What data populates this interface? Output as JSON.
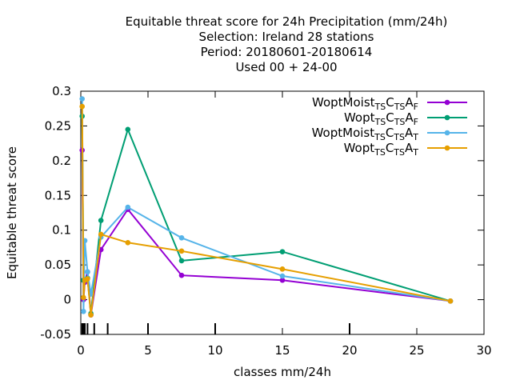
{
  "chart_data": {
    "type": "line",
    "title_lines": [
      "Equitable threat score  for 24h Precipitation (mm/24h)",
      "Selection: Ireland      28 stations",
      "Period: 20180601-20180614",
      "Used  00 + 24-00"
    ],
    "xlabel": "classes mm/24h",
    "ylabel": "Equitable threat score",
    "xlim": [
      0,
      30
    ],
    "ylim": [
      -0.05,
      0.3
    ],
    "xticks": [
      "0",
      "5",
      "10",
      "15",
      "20",
      "25",
      "30"
    ],
    "yticks": [
      "-0.05",
      "0",
      "0.05",
      "0.1",
      "0.15",
      "0.2",
      "0.25",
      "0.3"
    ],
    "class_marks": [
      0.1,
      0.2,
      0.3,
      0.5,
      1,
      2,
      5,
      10,
      20
    ],
    "grid": false,
    "legend_position": "top-right",
    "series": [
      {
        "name": "WoptMoist",
        "sub": "TS",
        "mid": "C",
        "sub2": "TS",
        "end": "A",
        "end_sub": "F",
        "color": "#9400d3",
        "x": [
          0.1,
          0.2,
          0.3,
          0.5,
          0.75,
          1.5,
          3.5,
          7.5,
          15,
          27.5
        ],
        "y": [
          0.215,
          0.0,
          0.025,
          0.04,
          -0.022,
          0.072,
          0.13,
          0.035,
          0.028,
          -0.002
        ]
      },
      {
        "name": "Wopt",
        "sub": "TS",
        "mid": "C",
        "sub2": "TS",
        "end": "A",
        "end_sub": "F",
        "color": "#009e73",
        "x": [
          0.1,
          0.2,
          0.3,
          0.5,
          0.75,
          1.5,
          3.5,
          7.5,
          15,
          27.5
        ],
        "y": [
          0.264,
          0.028,
          0.028,
          0.031,
          -0.02,
          0.114,
          0.245,
          0.056,
          0.069,
          -0.002
        ]
      },
      {
        "name": "WoptMoist",
        "sub": "TS",
        "mid": "C",
        "sub2": "TS",
        "end": "A",
        "end_sub": "T",
        "color": "#56b4e9",
        "x": [
          0.1,
          0.2,
          0.3,
          0.5,
          0.75,
          1.5,
          3.5,
          7.5,
          15,
          27.5
        ],
        "y": [
          0.289,
          -0.017,
          0.085,
          0.04,
          0.008,
          0.09,
          0.133,
          0.089,
          0.034,
          -0.002
        ]
      },
      {
        "name": "Wopt",
        "sub": "TS",
        "mid": "C",
        "sub2": "TS",
        "end": "A",
        "end_sub": "T",
        "color": "#e69f00",
        "x": [
          0.1,
          0.2,
          0.3,
          0.5,
          0.75,
          1.5,
          3.5,
          7.5,
          15,
          27.5
        ],
        "y": [
          0.278,
          0.003,
          0.028,
          0.03,
          -0.022,
          0.094,
          0.082,
          0.07,
          0.044,
          -0.002
        ]
      }
    ]
  }
}
